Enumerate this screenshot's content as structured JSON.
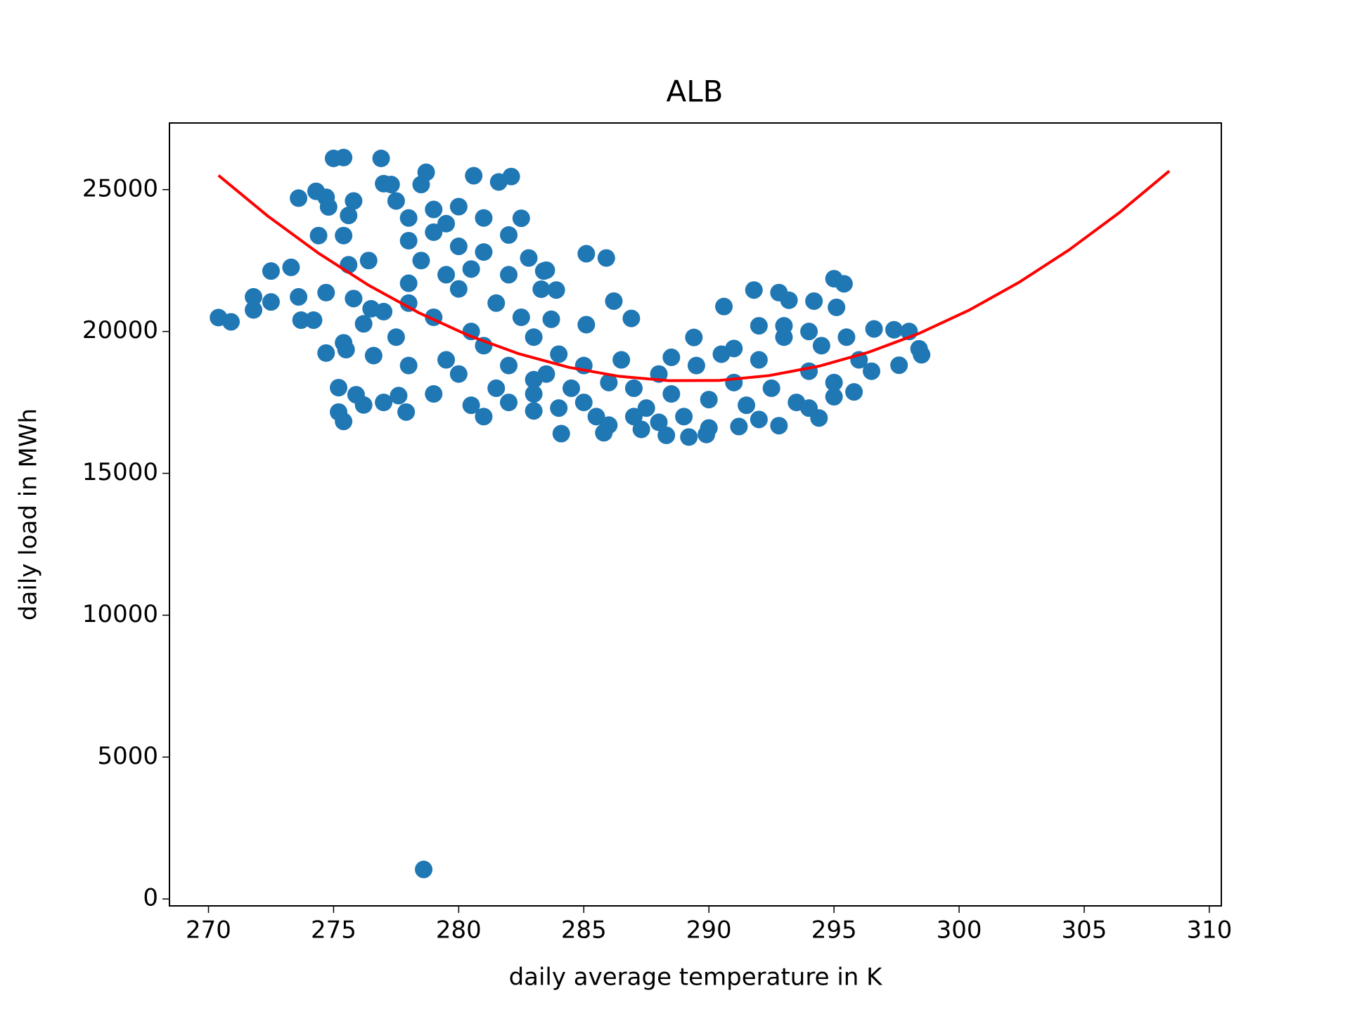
{
  "chart_data": {
    "type": "scatter",
    "title": "ALB",
    "x_label": "daily average temperature in K",
    "y_label": "daily load in MWh",
    "xlim": [
      268.44,
      310.48
    ],
    "ylim": [
      -244,
      27348
    ],
    "xticks": [
      270,
      275,
      280,
      285,
      290,
      295,
      300,
      305,
      310
    ],
    "yticks": [
      0,
      5000,
      10000,
      15000,
      20000,
      25000
    ],
    "series": [
      {
        "type": "scatter",
        "color": "#1f77b4",
        "x": [
          270.4,
          270.9,
          271.8,
          271.8,
          272.5,
          272.5,
          273.3,
          273.6,
          273.6,
          273.7,
          274.2,
          274.3,
          274.4,
          274.7,
          274.8,
          274.7,
          274.7,
          275.0,
          275.4,
          275.2,
          275.2,
          275.4,
          275.4,
          275.5,
          275.4,
          275.6,
          275.6,
          275.8,
          275.8,
          275.9,
          276.2,
          276.4,
          276.2,
          276.6,
          276.9,
          277.0,
          277.0,
          277.3,
          277.6,
          277.9,
          278.5,
          278.7,
          278.6,
          280.6,
          281.6,
          282.1,
          282.5,
          282.8,
          283.4,
          283.5,
          283.3,
          283.9,
          283.7,
          285.1,
          285.9,
          286.2,
          286.9,
          285.1,
          284.1,
          285.8,
          287.3,
          288.3,
          289.2,
          289.9,
          291.2,
          292.8,
          290.6,
          291.8,
          292.8,
          293.2,
          294.2,
          295.0,
          295.4,
          295.1,
          295.8,
          296.6,
          297.4,
          298.0,
          297.6,
          298.5,
          298.4,
          289.4,
          288.5,
          294.4,
          278,
          279,
          278.5,
          279.5,
          280,
          278,
          279,
          280.5,
          281,
          279.5,
          280,
          281.5,
          282,
          283,
          281,
          279,
          278,
          277.5,
          280,
          281,
          282,
          281.5,
          282.5,
          283,
          284,
          283.5,
          284.5,
          285,
          285.5,
          286,
          286.5,
          287,
          287.5,
          288,
          288.5,
          289,
          289.5,
          290,
          290.5,
          291,
          291.5,
          292,
          292.5,
          293,
          293.5,
          294,
          294.5,
          295,
          295.5,
          296,
          293,
          294,
          292,
          291,
          287,
          286,
          284,
          283,
          282,
          280.5,
          279,
          280,
          278,
          277.5,
          279.5,
          281,
          282,
          280.5,
          283,
          285,
          288,
          290,
          292,
          294,
          295,
          296.5,
          277,
          276.5,
          278
        ],
        "values": [
          20490,
          20340,
          20760,
          21220,
          22130,
          21040,
          22260,
          24700,
          21220,
          20400,
          20400,
          24940,
          23380,
          24730,
          24390,
          21370,
          19240,
          26100,
          26130,
          18020,
          17160,
          16830,
          19600,
          19360,
          23380,
          22350,
          24090,
          24600,
          21160,
          17770,
          20270,
          22500,
          17410,
          19150,
          26100,
          17500,
          25210,
          25180,
          17740,
          17160,
          25180,
          25610,
          1040,
          25490,
          25270,
          25460,
          23990,
          22590,
          22130,
          22160,
          21490,
          21460,
          20430,
          22740,
          22590,
          21070,
          20460,
          20240,
          16400,
          16430,
          16550,
          16340,
          16280,
          16370,
          16650,
          16680,
          20880,
          21460,
          21370,
          21100,
          21070,
          21860,
          21680,
          20850,
          17870,
          20090,
          20060,
          20000,
          18810,
          19180,
          19390,
          19790,
          19090,
          16950,
          24000,
          23500,
          22500,
          22000,
          21500,
          21000,
          20500,
          20000,
          19500,
          19000,
          18500,
          18000,
          17500,
          17200,
          17000,
          17800,
          18800,
          19800,
          23000,
          22800,
          22000,
          21000,
          20500,
          19800,
          19200,
          18500,
          18000,
          17500,
          17000,
          18200,
          19000,
          18000,
          17300,
          18500,
          17800,
          17000,
          18800,
          17600,
          19200,
          18200,
          17400,
          19000,
          18000,
          19800,
          17500,
          18600,
          19500,
          18200,
          19800,
          19000,
          20200,
          20000,
          20200,
          19400,
          17000,
          16700,
          17300,
          18300,
          18800,
          17400,
          24300,
          24400,
          23200,
          24600,
          23800,
          24000,
          23400,
          22200,
          17800,
          18800,
          16800,
          16600,
          16900,
          17300,
          17700,
          18600,
          20700,
          20800,
          21700
        ]
      },
      {
        "type": "line",
        "color": "#ff0000",
        "x": [
          270.4,
          272.4,
          274.4,
          276.4,
          278.4,
          280.4,
          282.4,
          284.4,
          286.4,
          288.4,
          290.4,
          292.4,
          294.4,
          296.4,
          298.4,
          300.4,
          302.4,
          304.4,
          306.4,
          308.4
        ],
        "values": [
          25501,
          24048,
          22757,
          21628,
          20662,
          19858,
          19216,
          18737,
          18421,
          18266,
          18275,
          18445,
          18778,
          19273,
          19931,
          20751,
          21734,
          22879,
          24186,
          25656
        ]
      }
    ]
  }
}
